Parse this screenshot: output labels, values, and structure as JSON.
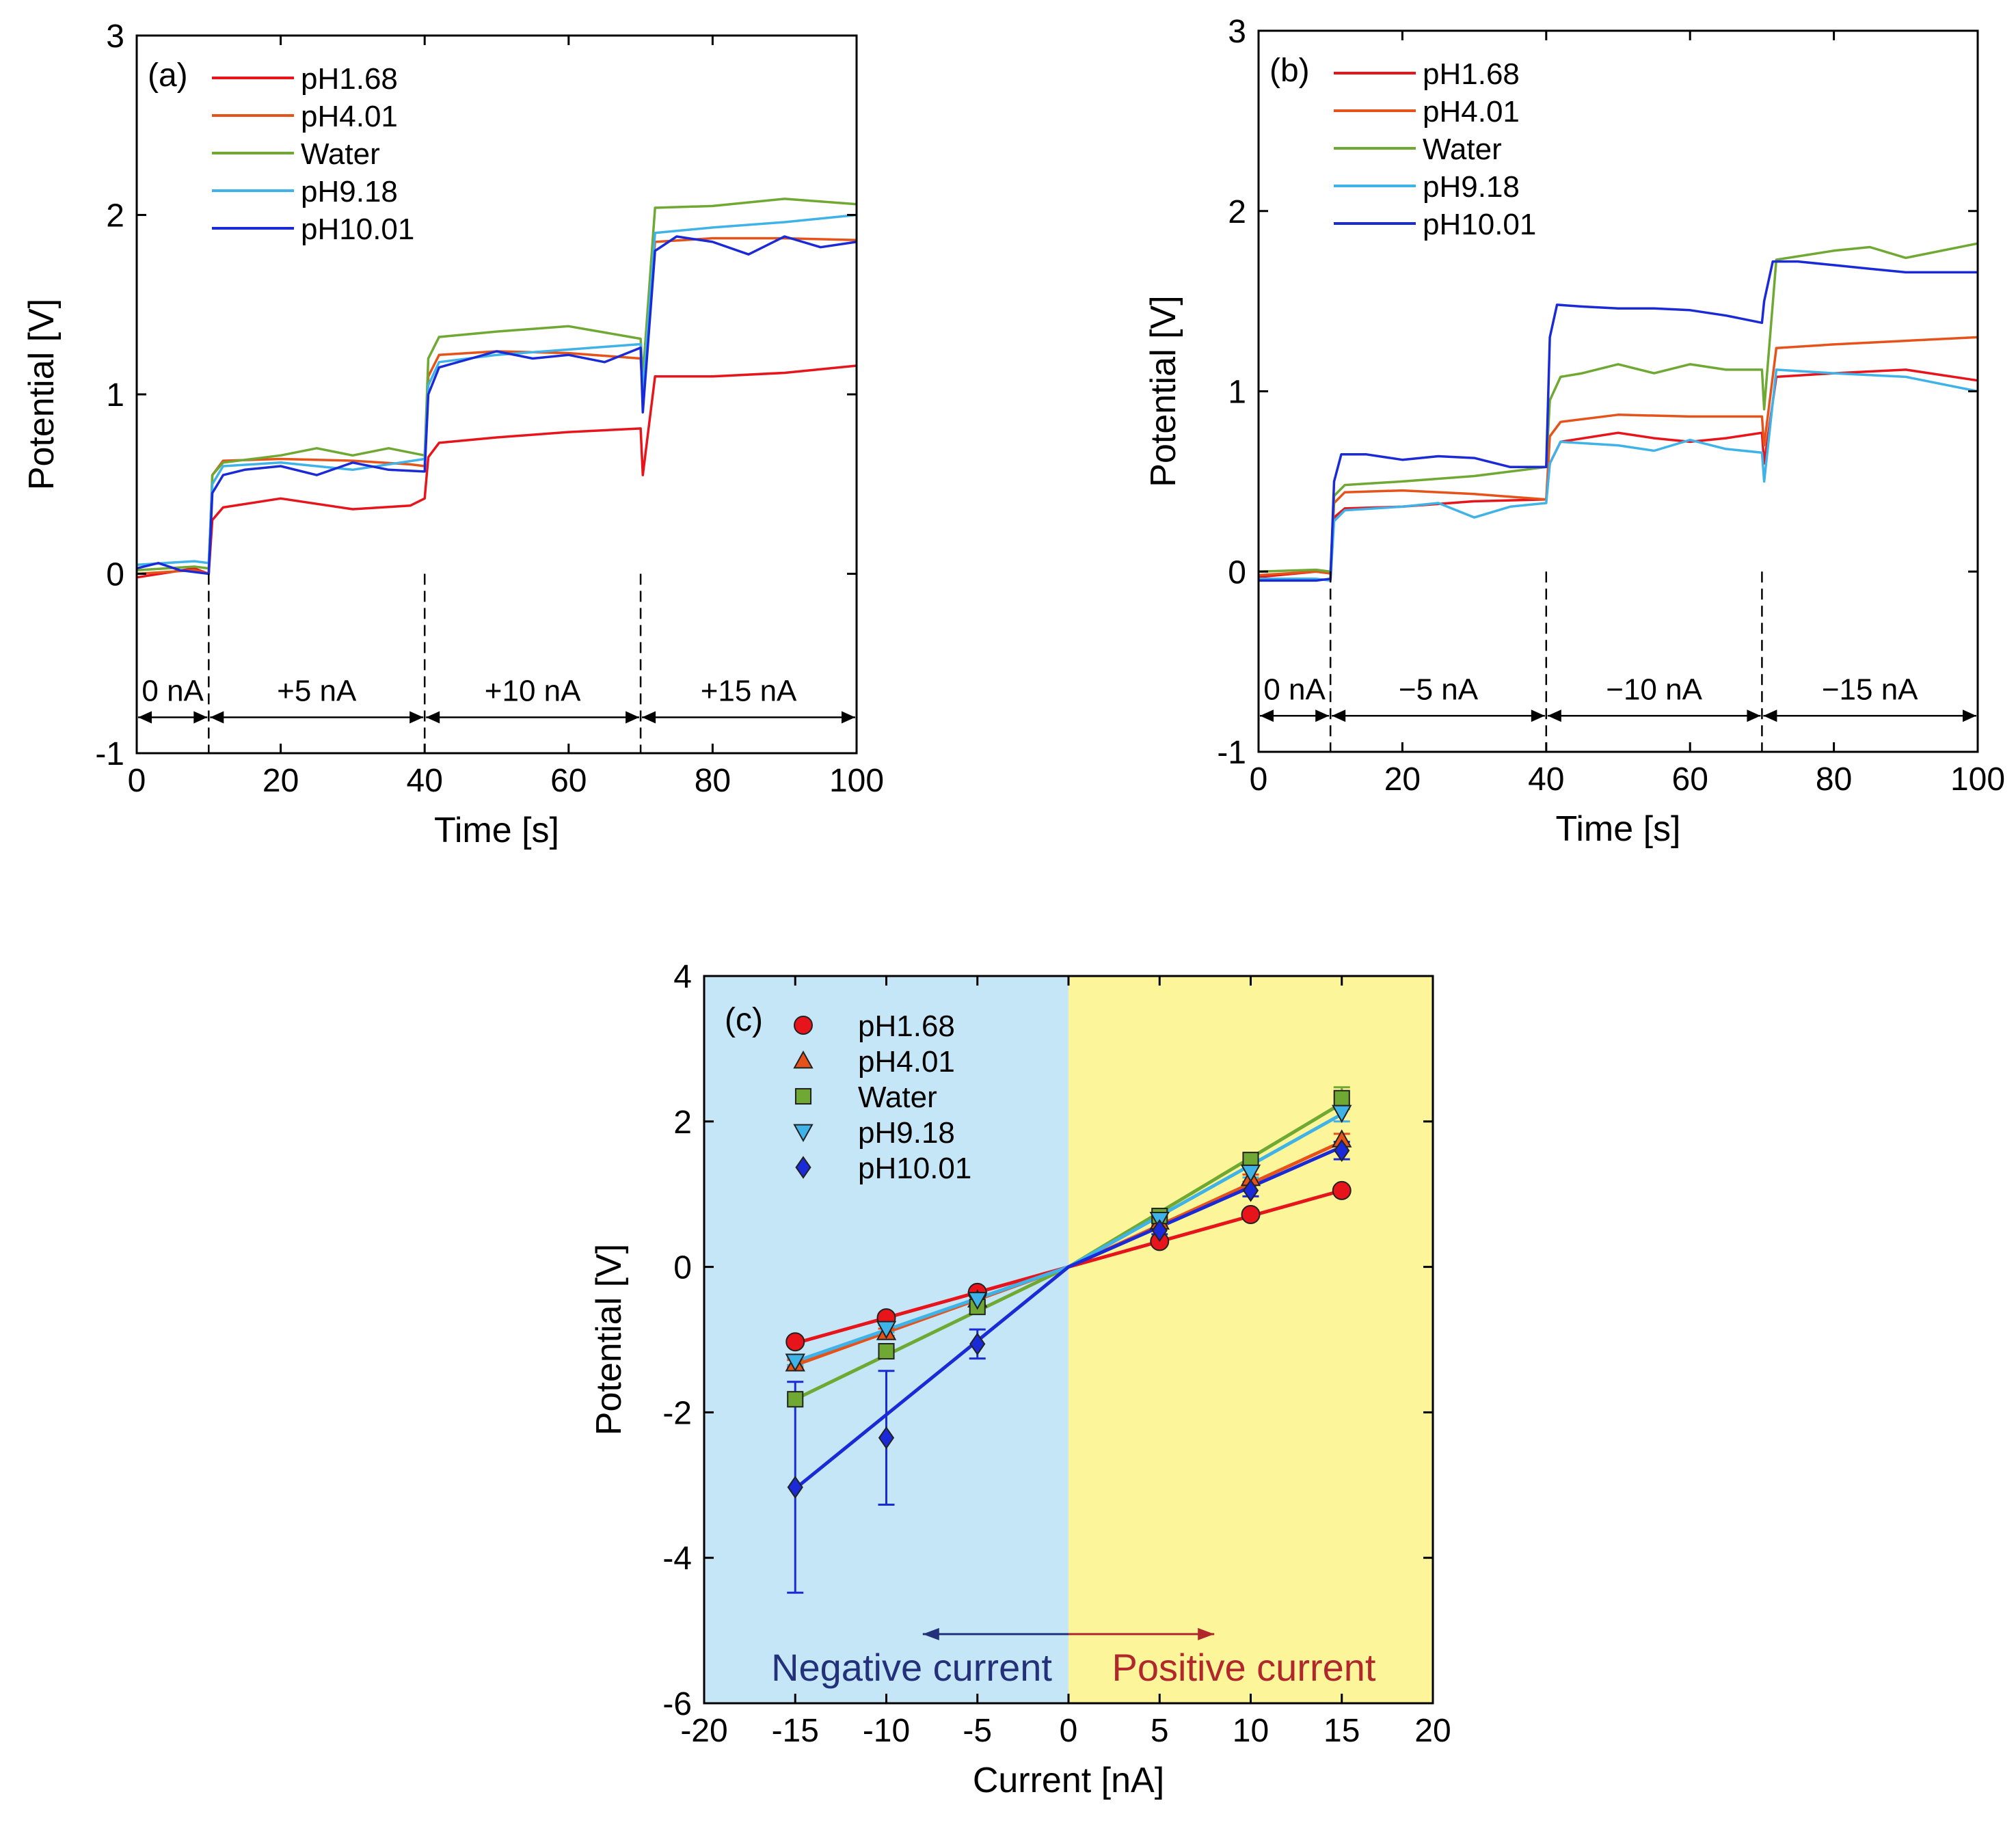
{
  "colors": {
    "pH1.68": "#e8141b",
    "pH4.01": "#e5531a",
    "Water": "#6fa832",
    "pH9.18": "#3fb3e8",
    "pH10.01": "#1a2ad6",
    "negative_bg": "#c5e6f7",
    "positive_bg": "#fdf59a",
    "negative_text": "#23307a",
    "positive_text": "#b0282b"
  },
  "chart_data": [
    {
      "panel": "(a)",
      "type": "line",
      "xlabel": "Time [s]",
      "ylabel": "Potential [V]",
      "xlim": [
        0,
        100
      ],
      "ylim": [
        -1,
        3
      ],
      "xticks": [
        "0",
        "20",
        "40",
        "60",
        "80",
        "100"
      ],
      "yticks": [
        "-1",
        "0",
        "1",
        "2",
        "3"
      ],
      "legend": [
        "pH1.68",
        "pH4.01",
        "Water",
        "pH9.18",
        "pH10.01"
      ],
      "boundaries": [
        10,
        40,
        70
      ],
      "segments": [
        "0 nA",
        "+5 nA",
        "+10 nA",
        "+15 nA"
      ],
      "series": [
        {
          "name": "pH1.68",
          "x": [
            0,
            8,
            10,
            10.5,
            12,
            20,
            30,
            38,
            40,
            40.5,
            42,
            50,
            60,
            70,
            70.3,
            72,
            80,
            90,
            100
          ],
          "y": [
            -0.02,
            0.03,
            0.0,
            0.3,
            0.37,
            0.42,
            0.36,
            0.38,
            0.42,
            0.65,
            0.73,
            0.76,
            0.79,
            0.81,
            0.55,
            1.1,
            1.1,
            1.12,
            1.16
          ]
        },
        {
          "name": "pH4.01",
          "x": [
            0,
            8,
            10,
            10.5,
            12,
            20,
            30,
            38,
            40,
            40.5,
            42,
            50,
            60,
            70,
            70.3,
            72,
            80,
            90,
            100
          ],
          "y": [
            0.0,
            0.02,
            0.0,
            0.55,
            0.63,
            0.64,
            0.63,
            0.61,
            0.6,
            1.1,
            1.22,
            1.24,
            1.23,
            1.2,
            1.0,
            1.85,
            1.87,
            1.87,
            1.86
          ]
        },
        {
          "name": "Water",
          "x": [
            0,
            8,
            10,
            10.5,
            12,
            20,
            25,
            30,
            35,
            40,
            40.5,
            42,
            50,
            60,
            70,
            70.3,
            72,
            80,
            90,
            100
          ],
          "y": [
            0.02,
            0.04,
            0.03,
            0.55,
            0.62,
            0.66,
            0.7,
            0.66,
            0.7,
            0.66,
            1.2,
            1.32,
            1.35,
            1.38,
            1.31,
            1.1,
            2.04,
            2.05,
            2.09,
            2.06
          ]
        },
        {
          "name": "pH9.18",
          "x": [
            0,
            8,
            10,
            10.5,
            12,
            20,
            30,
            40,
            40.5,
            42,
            50,
            60,
            70,
            70.3,
            72,
            80,
            90,
            100
          ],
          "y": [
            0.05,
            0.07,
            0.06,
            0.5,
            0.6,
            0.62,
            0.58,
            0.64,
            1.05,
            1.18,
            1.22,
            1.25,
            1.28,
            1.0,
            1.9,
            1.93,
            1.96,
            2.0
          ]
        },
        {
          "name": "pH10.01",
          "x": [
            0,
            3,
            6,
            10,
            10.5,
            12,
            15,
            20,
            25,
            30,
            35,
            40,
            40.5,
            42,
            50,
            55,
            60,
            65,
            70,
            70.3,
            72,
            75,
            80,
            85,
            90,
            95,
            100
          ],
          "y": [
            0.03,
            0.06,
            0.02,
            0.0,
            0.45,
            0.55,
            0.58,
            0.6,
            0.55,
            0.62,
            0.58,
            0.57,
            1.0,
            1.15,
            1.24,
            1.2,
            1.22,
            1.18,
            1.26,
            0.9,
            1.8,
            1.88,
            1.85,
            1.78,
            1.88,
            1.82,
            1.85
          ]
        }
      ]
    },
    {
      "panel": "(b)",
      "type": "line",
      "xlabel": "Time [s]",
      "ylabel": "Potential [V]",
      "xlim": [
        0,
        100
      ],
      "ylim": [
        -1,
        3
      ],
      "xticks": [
        "0",
        "20",
        "40",
        "60",
        "80",
        "100"
      ],
      "yticks": [
        "-1",
        "0",
        "1",
        "2",
        "3"
      ],
      "legend": [
        "pH1.68",
        "pH4.01",
        "Water",
        "pH9.18",
        "pH10.01"
      ],
      "boundaries": [
        10,
        40,
        70
      ],
      "segments": [
        "0 nA",
        "−5 nA",
        "−10 nA",
        "−15 nA"
      ],
      "series": [
        {
          "name": "pH1.68",
          "x": [
            0,
            8,
            10,
            10.5,
            12,
            20,
            30,
            40,
            40.5,
            42,
            50,
            55,
            60,
            65,
            70,
            70.3,
            72,
            80,
            90,
            100
          ],
          "y": [
            -0.03,
            0.0,
            -0.01,
            0.3,
            0.35,
            0.36,
            0.39,
            0.4,
            0.6,
            0.72,
            0.77,
            0.74,
            0.72,
            0.74,
            0.77,
            0.6,
            1.08,
            1.1,
            1.12,
            1.06
          ]
        },
        {
          "name": "pH4.01",
          "x": [
            0,
            8,
            10,
            10.5,
            12,
            20,
            30,
            40,
            40.5,
            42,
            50,
            60,
            70,
            70.3,
            72,
            80,
            90,
            100
          ],
          "y": [
            -0.02,
            0.0,
            -0.01,
            0.38,
            0.44,
            0.45,
            0.43,
            0.4,
            0.75,
            0.83,
            0.87,
            0.86,
            0.86,
            0.7,
            1.24,
            1.26,
            1.28,
            1.3
          ]
        },
        {
          "name": "Water",
          "x": [
            0,
            8,
            10,
            10.5,
            12,
            20,
            30,
            40,
            40.5,
            42,
            45,
            50,
            55,
            60,
            65,
            70,
            70.3,
            72,
            80,
            85,
            90,
            100
          ],
          "y": [
            0.0,
            0.01,
            0.0,
            0.42,
            0.48,
            0.5,
            0.53,
            0.58,
            0.95,
            1.08,
            1.1,
            1.15,
            1.1,
            1.15,
            1.12,
            1.12,
            0.9,
            1.73,
            1.78,
            1.8,
            1.74,
            1.82
          ]
        },
        {
          "name": "pH9.18",
          "x": [
            0,
            8,
            10,
            10.5,
            12,
            20,
            25,
            30,
            35,
            40,
            40.5,
            42,
            50,
            55,
            60,
            65,
            70,
            70.3,
            72,
            80,
            90,
            100
          ],
          "y": [
            -0.04,
            -0.04,
            -0.05,
            0.28,
            0.34,
            0.36,
            0.38,
            0.3,
            0.36,
            0.38,
            0.6,
            0.72,
            0.7,
            0.67,
            0.73,
            0.68,
            0.66,
            0.5,
            1.12,
            1.1,
            1.08,
            1.0
          ]
        },
        {
          "name": "pH10.01",
          "x": [
            0,
            8,
            10,
            10.5,
            11.5,
            15,
            20,
            25,
            30,
            35,
            40,
            40.5,
            41.5,
            45,
            50,
            55,
            60,
            65,
            70,
            70.3,
            71.5,
            75,
            80,
            85,
            90,
            95,
            100
          ],
          "y": [
            -0.05,
            -0.05,
            -0.04,
            0.5,
            0.65,
            0.65,
            0.62,
            0.64,
            0.63,
            0.58,
            0.58,
            1.3,
            1.48,
            1.47,
            1.46,
            1.46,
            1.45,
            1.42,
            1.38,
            1.5,
            1.72,
            1.72,
            1.7,
            1.68,
            1.66,
            1.66,
            1.66
          ]
        }
      ]
    },
    {
      "panel": "(c)",
      "type": "scatter",
      "xlabel": "Current [nA]",
      "ylabel": "Potential [V]",
      "xlim": [
        -20,
        20
      ],
      "ylim": [
        -6,
        4
      ],
      "xticks": [
        "-20",
        "-15",
        "-10",
        "-5",
        "0",
        "5",
        "10",
        "15",
        "20"
      ],
      "yticks": [
        "-6",
        "-4",
        "-2",
        "0",
        "2",
        "4"
      ],
      "legend": [
        "pH1.68",
        "pH4.01",
        "Water",
        "pH9.18",
        "pH10.01"
      ],
      "regions": {
        "negative": "Negative current",
        "positive": "Positive current"
      },
      "series": [
        {
          "name": "pH1.68",
          "marker": "circle",
          "x": [
            -15,
            -10,
            -5,
            5,
            10,
            15
          ],
          "y": [
            -1.03,
            -0.7,
            -0.35,
            0.35,
            0.72,
            1.05
          ],
          "err": [
            0.03,
            0.03,
            0.03,
            0.03,
            0.03,
            0.03
          ],
          "fit": [
            [
              -15,
              -1.05
            ],
            [
              15,
              1.05
            ]
          ]
        },
        {
          "name": "pH4.01",
          "marker": "triangle-up",
          "x": [
            -15,
            -10,
            -5,
            5,
            10,
            15
          ],
          "y": [
            -1.33,
            -0.9,
            -0.45,
            0.62,
            1.22,
            1.75
          ],
          "err": [
            0.05,
            0.05,
            0.05,
            0.05,
            0.05,
            0.08
          ],
          "fit": [
            [
              -15,
              -1.35
            ],
            [
              15,
              1.72
            ]
          ]
        },
        {
          "name": "Water",
          "marker": "square",
          "x": [
            -15,
            -10,
            -5,
            5,
            10,
            15
          ],
          "y": [
            -1.82,
            -1.16,
            -0.55,
            0.7,
            1.47,
            2.32
          ],
          "err": [
            0.05,
            0.05,
            0.05,
            0.05,
            0.06,
            0.15
          ],
          "fit": [
            [
              -15,
              -1.82
            ],
            [
              15,
              2.25
            ]
          ]
        },
        {
          "name": "pH9.18",
          "marker": "triangle-down",
          "x": [
            -15,
            -10,
            -5,
            5,
            10,
            15
          ],
          "y": [
            -1.3,
            -0.85,
            -0.45,
            0.65,
            1.3,
            2.12
          ],
          "err": [
            0.05,
            0.05,
            0.05,
            0.05,
            0.07,
            0.12
          ],
          "fit": [
            [
              -15,
              -1.3
            ],
            [
              15,
              2.1
            ]
          ]
        },
        {
          "name": "pH10.01",
          "marker": "diamond",
          "x": [
            -15,
            -10,
            -5,
            5,
            10,
            15
          ],
          "y": [
            -3.03,
            -2.35,
            -1.06,
            0.5,
            1.05,
            1.6
          ],
          "err": [
            1.45,
            0.92,
            0.2,
            0.05,
            0.08,
            0.12
          ],
          "fit": [
            [
              -15,
              -3.05
            ],
            [
              15,
              1.65
            ]
          ]
        }
      ]
    }
  ]
}
